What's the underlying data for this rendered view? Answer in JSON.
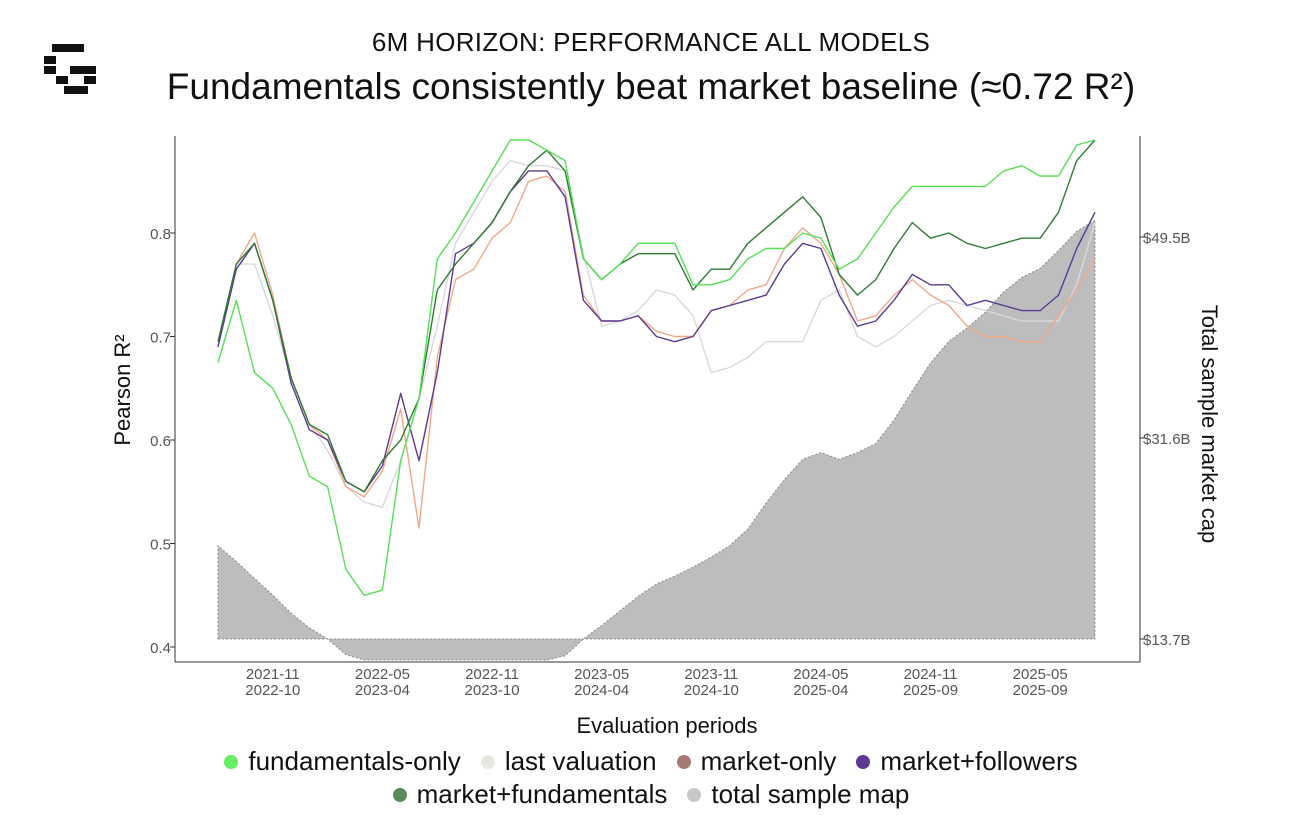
{
  "header": {
    "subtitle": "6M HORIZON: PERFORMANCE ALL MODELS",
    "title": "Fundamentals consistently beat market baseline (≈0.72 R²)"
  },
  "logo": {
    "icon": "pixel-g-logo-icon"
  },
  "legend": [
    {
      "label": "fundamentals-only",
      "color": "#66ee66"
    },
    {
      "label": "last valuation",
      "color": "#e8e8e0"
    },
    {
      "label": "market-only",
      "color": "#a67a74"
    },
    {
      "label": "market+followers",
      "color": "#5b3a94"
    },
    {
      "label": "market+fundamentals",
      "color": "#5a8c5a"
    },
    {
      "label": "total sample map",
      "color": "#c8c8c8"
    }
  ],
  "chart_data": {
    "type": "line",
    "xlabel": "Evaluation periods",
    "ylabel": "Pearson R²",
    "y2label": "Total sample market cap",
    "ylim": [
      0.4,
      0.89
    ],
    "yticks": [
      0.4,
      0.5,
      0.6,
      0.7,
      0.8
    ],
    "y2ticks": [
      {
        "value": 13.7,
        "label": "$13.7B"
      },
      {
        "value": 31.6,
        "label": "$31.6B"
      },
      {
        "value": 49.5,
        "label": "$49.5B"
      }
    ],
    "y2lim": [
      13.7,
      49.5
    ],
    "x_tick_indices": [
      3,
      9,
      15,
      21,
      27,
      33,
      39,
      45
    ],
    "x_tick_labels": [
      [
        "2021-11",
        "2022-10"
      ],
      [
        "2022-05",
        "2023-04"
      ],
      [
        "2022-11",
        "2023-10"
      ],
      [
        "2023-05",
        "2024-04"
      ],
      [
        "2023-11",
        "2024-10"
      ],
      [
        "2024-05",
        "2025-04"
      ],
      [
        "2024-11",
        "2025-09"
      ],
      [
        "2025-05",
        "2025-09"
      ]
    ],
    "n_points": 49,
    "series": [
      {
        "name": "total sample map",
        "kind": "area",
        "color": "#bdbdbd",
        "values": [
          22.0,
          20.6,
          19.1,
          17.6,
          16.0,
          14.7,
          13.7,
          12.3,
          11.2,
          10.6,
          9.7,
          8.9,
          9.1,
          9.5,
          9.6,
          9.4,
          9.6,
          10.1,
          11.1,
          12.2,
          13.7,
          14.9,
          16.2,
          17.5,
          18.6,
          19.3,
          20.1,
          21.0,
          22.0,
          23.5,
          25.8,
          27.9,
          29.7,
          30.3,
          29.7,
          30.3,
          31.1,
          33.2,
          35.8,
          38.3,
          40.2,
          41.4,
          42.8,
          44.6,
          45.9,
          46.7,
          48.3,
          50.0,
          51.0
        ]
      },
      {
        "name": "last valuation",
        "kind": "line",
        "color": "#d9d9d9",
        "values": [
          0.695,
          0.77,
          0.77,
          0.72,
          0.66,
          0.615,
          0.59,
          0.555,
          0.54,
          0.535,
          0.58,
          0.64,
          0.71,
          0.79,
          0.82,
          0.85,
          0.87,
          0.865,
          0.865,
          0.86,
          0.78,
          0.71,
          0.715,
          0.725,
          0.745,
          0.74,
          0.72,
          0.665,
          0.67,
          0.68,
          0.695,
          0.695,
          0.695,
          0.735,
          0.745,
          0.7,
          0.69,
          0.7,
          0.715,
          0.73,
          0.735,
          0.73,
          0.725,
          0.72,
          0.715,
          0.715,
          0.715,
          0.75,
          0.81
        ]
      },
      {
        "name": "market-only",
        "kind": "line",
        "color": "#f0a888",
        "values": [
          0.69,
          0.77,
          0.8,
          0.74,
          0.66,
          0.615,
          0.6,
          0.555,
          0.545,
          0.57,
          0.63,
          0.515,
          0.68,
          0.755,
          0.765,
          0.795,
          0.81,
          0.85,
          0.855,
          0.84,
          0.74,
          0.715,
          0.715,
          0.72,
          0.705,
          0.7,
          0.7,
          0.725,
          0.73,
          0.745,
          0.75,
          0.785,
          0.805,
          0.79,
          0.76,
          0.715,
          0.72,
          0.74,
          0.755,
          0.74,
          0.73,
          0.71,
          0.7,
          0.7,
          0.695,
          0.695,
          0.72,
          0.745,
          0.775
        ]
      },
      {
        "name": "market+followers",
        "kind": "line",
        "color": "#5b3a94",
        "values": [
          0.69,
          0.765,
          0.79,
          0.735,
          0.655,
          0.61,
          0.6,
          0.56,
          0.55,
          0.575,
          0.645,
          0.58,
          0.665,
          0.78,
          0.79,
          0.81,
          0.84,
          0.86,
          0.86,
          0.835,
          0.735,
          0.715,
          0.715,
          0.72,
          0.7,
          0.695,
          0.7,
          0.725,
          0.73,
          0.735,
          0.74,
          0.77,
          0.79,
          0.785,
          0.74,
          0.71,
          0.715,
          0.735,
          0.76,
          0.75,
          0.75,
          0.73,
          0.735,
          0.73,
          0.725,
          0.725,
          0.74,
          0.785,
          0.82
        ]
      },
      {
        "name": "market+fundamentals",
        "kind": "line",
        "color": "#2e7d32",
        "values": [
          0.695,
          0.77,
          0.79,
          0.735,
          0.66,
          0.615,
          0.605,
          0.56,
          0.55,
          0.58,
          0.6,
          0.64,
          0.745,
          0.77,
          0.79,
          0.81,
          0.84,
          0.865,
          0.88,
          0.86,
          0.775,
          0.755,
          0.77,
          0.78,
          0.78,
          0.78,
          0.745,
          0.765,
          0.765,
          0.79,
          0.805,
          0.82,
          0.835,
          0.815,
          0.76,
          0.74,
          0.755,
          0.785,
          0.81,
          0.795,
          0.8,
          0.79,
          0.785,
          0.79,
          0.795,
          0.795,
          0.82,
          0.87,
          0.895
        ]
      },
      {
        "name": "fundamentals-only",
        "kind": "line",
        "color": "#55e055",
        "values": [
          0.675,
          0.735,
          0.665,
          0.65,
          0.615,
          0.565,
          0.555,
          0.475,
          0.45,
          0.455,
          0.58,
          0.64,
          0.775,
          0.8,
          0.83,
          0.86,
          0.89,
          0.89,
          0.88,
          0.87,
          0.775,
          0.755,
          0.77,
          0.79,
          0.79,
          0.79,
          0.75,
          0.75,
          0.755,
          0.775,
          0.785,
          0.785,
          0.8,
          0.795,
          0.765,
          0.775,
          0.8,
          0.825,
          0.845,
          0.845,
          0.845,
          0.845,
          0.845,
          0.86,
          0.865,
          0.855,
          0.855,
          0.885,
          0.915
        ]
      }
    ]
  }
}
